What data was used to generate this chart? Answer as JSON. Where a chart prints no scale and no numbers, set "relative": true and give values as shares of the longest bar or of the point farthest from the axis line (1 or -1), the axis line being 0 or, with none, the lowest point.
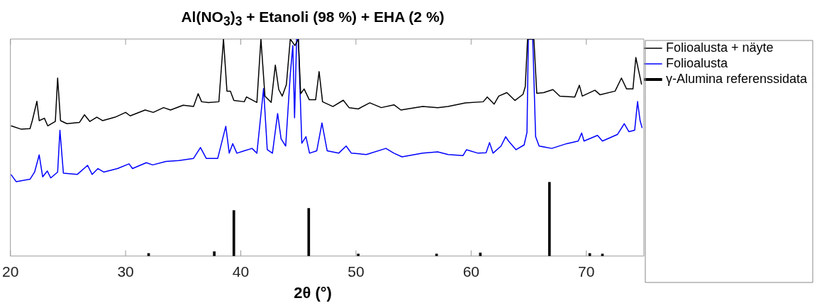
{
  "chart_data": {
    "type": "line",
    "title": "Al(NO$_{3}$)$_{3}$ + Etanoli (98 %) + EHA (2 %)",
    "xlabel": "2θ (°)",
    "relative": true,
    "xlim": [
      20,
      75
    ],
    "xticks": [
      20,
      30,
      40,
      50,
      60,
      70
    ],
    "legend": "top right",
    "marker": "none",
    "grid": false,
    "series": [
      {
        "name": "Folioalusta + näyte",
        "color": "#000000",
        "x": [
          20.05,
          20.9,
          21.7,
          21.9,
          22.3,
          22.5,
          22.95,
          23.24,
          23.9,
          24.1,
          24.35,
          24.9,
          26.0,
          26.43,
          26.9,
          27.5,
          28.0,
          29.1,
          30.0,
          30.4,
          31.7,
          32.4,
          33.3,
          33.9,
          35.0,
          35.9,
          36.3,
          36.6,
          37.2,
          38.1,
          38.5,
          38.8,
          39.1,
          39.4,
          40.3,
          40.5,
          41.4,
          41.75,
          42.1,
          42.64,
          43.0,
          43.3,
          43.6,
          43.96,
          44.3,
          44.7,
          45.0,
          45.2,
          45.5,
          45.95,
          46.5,
          46.8,
          47.1,
          48.0,
          48.9,
          49.4,
          50.2,
          51.2,
          52.2,
          53.3,
          53.9,
          55.8,
          57.1,
          58.0,
          59.5,
          61.05,
          61.4,
          62.0,
          62.4,
          63.1,
          63.8,
          64.5,
          64.7,
          64.9,
          65.45,
          65.7,
          66.3,
          67.1,
          67.7,
          69.0,
          69.4,
          69.65,
          70.75,
          71.2,
          72.5,
          73.05,
          73.5,
          74.05,
          74.3,
          74.6,
          74.8
        ],
        "values": [
          0.6,
          0.585,
          0.587,
          0.624,
          0.713,
          0.624,
          0.635,
          0.6,
          0.62,
          0.82,
          0.624,
          0.61,
          0.616,
          0.651,
          0.62,
          0.64,
          0.624,
          0.64,
          0.662,
          0.646,
          0.673,
          0.662,
          0.684,
          0.673,
          0.695,
          0.689,
          0.748,
          0.711,
          0.707,
          0.711,
          1.0,
          0.76,
          0.76,
          0.717,
          0.711,
          0.733,
          0.708,
          1.0,
          0.737,
          0.708,
          0.88,
          0.767,
          0.737,
          0.79,
          1.0,
          0.97,
          1.0,
          0.748,
          0.77,
          0.72,
          0.72,
          0.85,
          0.711,
          0.689,
          0.718,
          0.684,
          0.678,
          0.706,
          0.684,
          0.697,
          0.673,
          0.689,
          0.684,
          0.689,
          0.706,
          0.711,
          0.733,
          0.7,
          0.737,
          0.753,
          0.717,
          0.745,
          0.78,
          1.0,
          1.0,
          0.75,
          0.753,
          0.767,
          0.737,
          0.733,
          0.787,
          0.737,
          0.764,
          0.743,
          0.76,
          0.82,
          0.77,
          0.77,
          0.915,
          0.84,
          0.79
        ]
      },
      {
        "name": "Folioalusta",
        "color": "#0000ff",
        "x": [
          20.05,
          20.5,
          21.7,
          22.1,
          22.5,
          22.8,
          23.2,
          23.5,
          24.1,
          24.3,
          24.6,
          25.8,
          26.7,
          27.1,
          27.6,
          28.1,
          29.3,
          30.3,
          30.6,
          31.8,
          32.35,
          33.5,
          34.6,
          35.9,
          36.5,
          37.0,
          38.0,
          38.7,
          39.0,
          39.3,
          39.66,
          40.3,
          40.98,
          41.4,
          41.98,
          42.3,
          42.75,
          43.2,
          43.5,
          43.9,
          44.3,
          44.52,
          44.67,
          44.85,
          45.0,
          45.3,
          45.66,
          45.97,
          46.6,
          47.05,
          47.5,
          48.5,
          49.15,
          49.6,
          50.9,
          52.6,
          53.3,
          54.0,
          55.8,
          57.1,
          58.0,
          59.3,
          59.6,
          60.6,
          61.3,
          61.6,
          61.9,
          62.6,
          63.0,
          63.25,
          63.9,
          64.6,
          64.85,
          64.97,
          65.35,
          65.6,
          65.9,
          67.0,
          68.3,
          69.3,
          69.6,
          69.8,
          70.97,
          71.4,
          72.7,
          73.3,
          73.7,
          74.2,
          74.45,
          74.67,
          74.85
        ],
        "values": [
          0.376,
          0.343,
          0.354,
          0.387,
          0.466,
          0.365,
          0.392,
          0.36,
          0.387,
          0.58,
          0.382,
          0.376,
          0.418,
          0.376,
          0.403,
          0.387,
          0.403,
          0.425,
          0.403,
          0.43,
          0.42,
          0.436,
          0.44,
          0.45,
          0.5,
          0.45,
          0.45,
          0.598,
          0.474,
          0.518,
          0.474,
          0.485,
          0.496,
          0.474,
          0.772,
          0.49,
          0.474,
          0.657,
          0.54,
          0.507,
          0.838,
          0.97,
          0.637,
          1.0,
          1.0,
          0.52,
          0.55,
          0.474,
          0.485,
          0.613,
          0.485,
          0.474,
          0.507,
          0.474,
          0.468,
          0.496,
          0.474,
          0.457,
          0.474,
          0.48,
          0.468,
          0.463,
          0.49,
          0.474,
          0.476,
          0.523,
          0.474,
          0.507,
          0.55,
          0.53,
          0.49,
          0.512,
          0.57,
          1.0,
          1.0,
          0.55,
          0.507,
          0.496,
          0.518,
          0.53,
          0.567,
          0.53,
          0.556,
          0.53,
          0.56,
          0.61,
          0.573,
          0.58,
          0.712,
          0.624,
          0.59
        ]
      },
      {
        "name": "γ-Alumina referenssidata",
        "type": "bar",
        "color": "#000000",
        "x": [
          32.0,
          37.7,
          39.4,
          45.9,
          50.2,
          57.0,
          60.8,
          66.8,
          70.3,
          71.4
        ],
        "values": [
          0.012,
          0.02,
          0.21,
          0.22,
          0.01,
          0.01,
          0.015,
          0.34,
          0.012,
          0.01
        ]
      }
    ]
  }
}
